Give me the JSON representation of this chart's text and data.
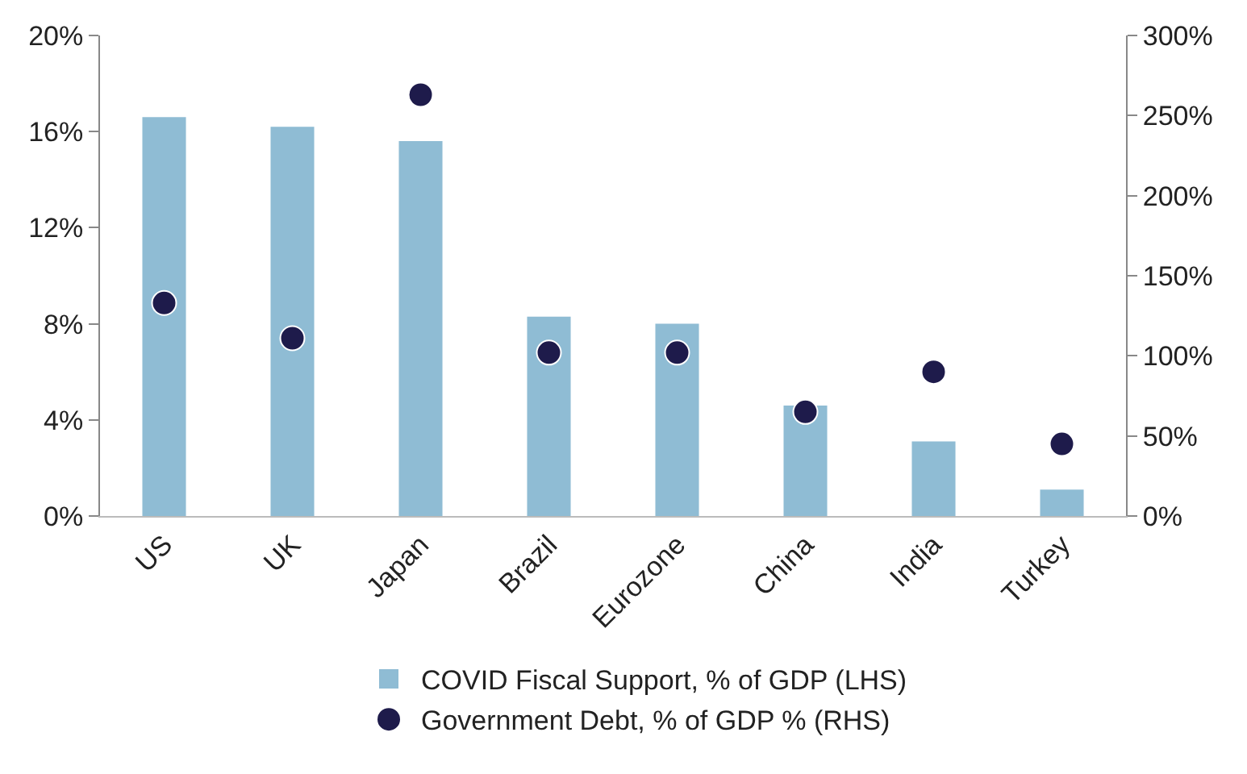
{
  "chart_data": {
    "type": "bar",
    "categories": [
      "US",
      "UK",
      "Japan",
      "Brazil",
      "Eurozone",
      "China",
      "India",
      "Turkey"
    ],
    "series": [
      {
        "name": "COVID Fiscal Support, % of GDP (LHS)",
        "color": "#8fbcd4",
        "values": [
          16.6,
          16.2,
          15.6,
          8.3,
          8.0,
          4.6,
          3.1,
          1.1
        ]
      },
      {
        "name": "Government Debt, % of GDP % (RHS)",
        "type": "scatter",
        "axis": "y2",
        "color": "#1e1b4b",
        "marker": "circle",
        "values": [
          133,
          111,
          263,
          102,
          102,
          65,
          90,
          45
        ]
      }
    ],
    "ylim": [
      0,
      20
    ],
    "yticks": [
      {
        "value": 0,
        "label": "0%"
      },
      {
        "value": 4,
        "label": "4%"
      },
      {
        "value": 8,
        "label": "8%"
      },
      {
        "value": 12,
        "label": "12%"
      },
      {
        "value": 16,
        "label": "16%"
      },
      {
        "value": 20,
        "label": "20%"
      }
    ],
    "y2lim": [
      0,
      300
    ],
    "y2ticks": [
      {
        "value": 0,
        "label": "0%"
      },
      {
        "value": 50,
        "label": "50%"
      },
      {
        "value": 100,
        "label": "100%"
      },
      {
        "value": 150,
        "label": "150%"
      },
      {
        "value": 200,
        "label": "200%"
      },
      {
        "value": 250,
        "label": "250%"
      },
      {
        "value": 300,
        "label": "300%"
      }
    ],
    "grid": false,
    "legend": "bottom"
  }
}
